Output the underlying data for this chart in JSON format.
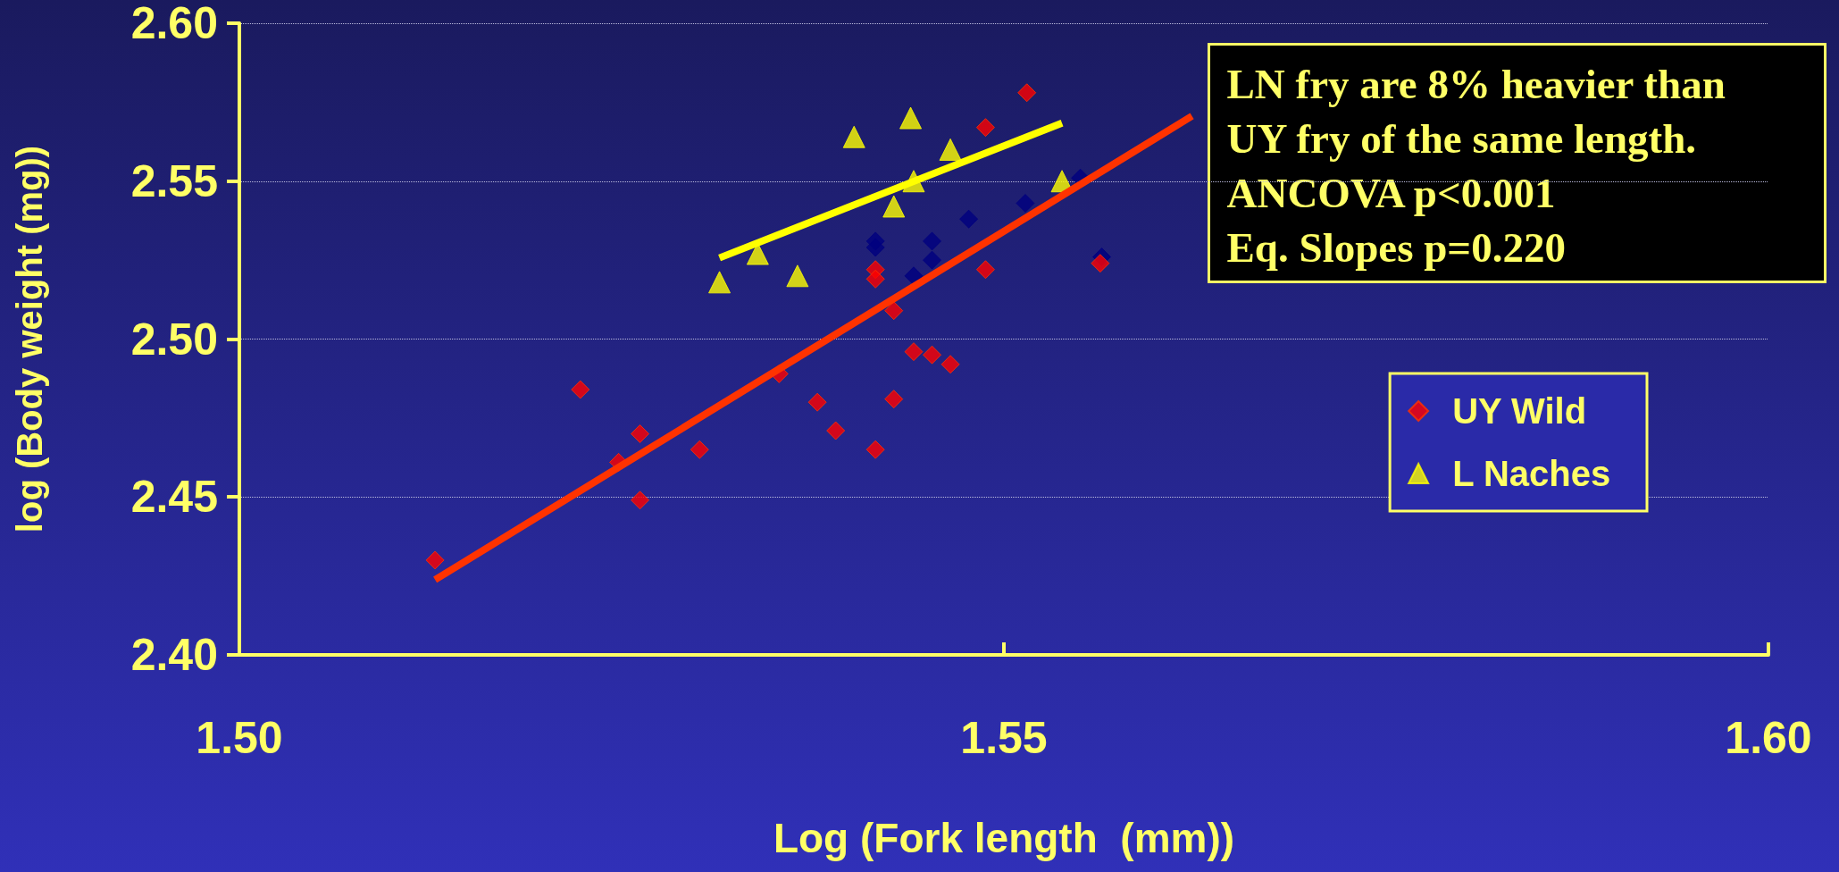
{
  "chart_data": {
    "type": "scatter",
    "xlabel": "Log (Fork length  (mm))",
    "ylabel": "log (Body weight (mg))",
    "annotations": [
      "LN fry are 8% heavier than",
      "UY fry of the same length.",
      "ANCOVA p<0.001",
      "Eq. Slopes p=0.220"
    ],
    "xlim": [
      1.5,
      1.6
    ],
    "xticks": [
      {
        "value": 1.5,
        "label": "1.50"
      },
      {
        "value": 1.55,
        "label": "1.55"
      },
      {
        "value": 1.6,
        "label": "1.60"
      }
    ],
    "ylim": [
      2.4,
      2.6
    ],
    "yticks": [
      {
        "value": 2.4,
        "label": "2.40"
      },
      {
        "value": 2.45,
        "label": "2.45"
      },
      {
        "value": 2.5,
        "label": "2.50"
      },
      {
        "value": 2.55,
        "label": "2.55"
      },
      {
        "value": 2.6,
        "label": "2.60"
      }
    ],
    "grid": "y",
    "legend": "right",
    "series": [
      {
        "color": "#000080",
        "marker": "diamond",
        "x": [
          1.5416,
          1.5416,
          1.544,
          1.5441,
          1.5453,
          1.5453,
          1.5477,
          1.5514,
          1.555,
          1.5564
        ],
        "values": [
          2.531,
          2.529,
          null,
          2.52,
          2.531,
          2.525,
          2.538,
          2.543,
          2.551,
          2.526
        ]
      },
      {
        "name": "UY Wild",
        "color": "#ff0000",
        "marker": "diamond",
        "x": [
          1.5128,
          1.5223,
          1.5248,
          1.5262,
          1.5262,
          1.5301,
          1.5353,
          1.5378,
          1.539,
          1.5416,
          1.5416,
          1.5416,
          1.5428,
          1.5428,
          1.5441,
          1.5453,
          1.5465,
          1.5488,
          1.5488,
          1.5515,
          1.5563
        ],
        "values": [
          2.43,
          2.484,
          2.461,
          2.47,
          2.449,
          2.465,
          2.489,
          2.48,
          2.471,
          2.465,
          2.522,
          2.519,
          2.509,
          2.481,
          2.496,
          2.495,
          2.492,
          2.522,
          2.567,
          2.578,
          2.524
        ]
      },
      {
        "name": "L Naches",
        "color": "#ffff00",
        "marker": "triangle",
        "x": [
          1.5314,
          1.5339,
          1.5365,
          1.5402,
          1.5428,
          1.5439,
          1.5441,
          1.5465,
          1.5538
        ],
        "values": [
          2.518,
          2.527,
          2.52,
          2.564,
          2.542,
          2.57,
          2.55,
          2.56,
          2.55
        ]
      },
      {
        "type": "line",
        "color": "#ff3300",
        "marker": "none",
        "x": [
          1.5128,
          1.5623
        ],
        "values": [
          2.4238,
          2.5706
        ]
      },
      {
        "type": "line",
        "color": "#ffff00",
        "marker": "none",
        "x": [
          1.5314,
          1.5538
        ],
        "values": [
          2.5257,
          2.5684
        ]
      }
    ]
  }
}
